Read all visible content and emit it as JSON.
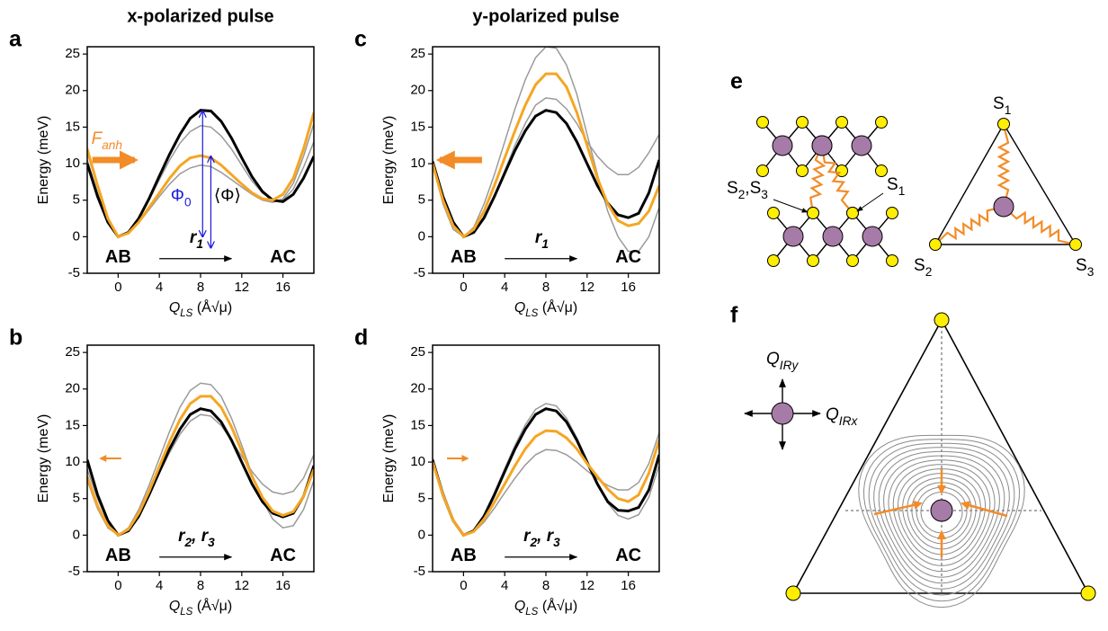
{
  "chart_data": [
    {
      "type": "line",
      "panel": "a",
      "title": "x-polarized pulse",
      "xlabel": [
        "Q",
        "LS",
        " (Å√μ)"
      ],
      "ylabel": "Energy (meV)",
      "xlim": [
        -3,
        19
      ],
      "ylim": [
        -5,
        26
      ],
      "xticks": [
        0,
        4,
        8,
        12,
        16
      ],
      "yticks": [
        -5,
        0,
        5,
        10,
        15,
        20,
        25
      ],
      "left_label": "AB",
      "right_label": "AC",
      "arrow_label": [
        "r",
        "1"
      ],
      "force_label": [
        "F",
        "anh"
      ],
      "barrier_label": [
        "Φ",
        "0"
      ],
      "mean_barrier_label": "⟨Φ⟩",
      "x": [
        -3,
        -2,
        -1,
        0,
        1,
        2,
        3,
        4,
        5,
        6,
        7,
        8,
        9,
        10,
        11,
        12,
        13,
        14,
        15,
        16,
        17,
        18,
        19
      ],
      "series": [
        {
          "color": "#9a9a9a",
          "values": [
            10.5,
            6,
            2.2,
            0,
            0.6,
            2.4,
            5,
            7.8,
            10.5,
            12.8,
            14.4,
            15.2,
            15,
            13.8,
            12,
            9.8,
            7.6,
            6,
            5,
            5,
            6.5,
            9.5,
            13
          ]
        },
        {
          "color": "#9a9a9a",
          "values": [
            11.5,
            6.8,
            2.4,
            0,
            0.5,
            1.9,
            3.7,
            5.5,
            7.2,
            8.6,
            9.4,
            9.8,
            9.6,
            8.8,
            7.8,
            6.8,
            5.8,
            5,
            4.7,
            5.2,
            7.3,
            11,
            15.5
          ]
        },
        {
          "color": "#000000",
          "values": [
            10,
            5.5,
            2,
            0,
            0.6,
            2.5,
            5.2,
            8.3,
            11.3,
            14,
            16.2,
            17.3,
            17.2,
            15.8,
            13.5,
            10.8,
            8.2,
            6.2,
            5,
            4.8,
            5.8,
            8,
            11
          ]
        },
        {
          "color": "#f5a623",
          "values": [
            12,
            7,
            2.5,
            0,
            0.5,
            2,
            4,
            6,
            8,
            9.7,
            10.8,
            11.1,
            10.8,
            9.8,
            8.5,
            7.2,
            6,
            5.2,
            5,
            5.8,
            8,
            12,
            17
          ]
        }
      ]
    },
    {
      "type": "line",
      "panel": "b",
      "xlabel": [
        "Q",
        "LS",
        " (Å√μ)"
      ],
      "ylabel": "Energy (meV)",
      "xlim": [
        -3,
        19
      ],
      "ylim": [
        -5,
        26
      ],
      "xticks": [
        0,
        4,
        8,
        12,
        16
      ],
      "yticks": [
        -5,
        0,
        5,
        10,
        15,
        20,
        25
      ],
      "left_label": "AB",
      "right_label": "AC",
      "arrow_label": [
        "r",
        "2",
        ", r",
        "3"
      ],
      "x": [
        -3,
        -2,
        -1,
        0,
        1,
        2,
        3,
        4,
        5,
        6,
        7,
        8,
        9,
        10,
        11,
        12,
        13,
        14,
        15,
        16,
        17,
        18,
        19
      ],
      "series": [
        {
          "color": "#9a9a9a",
          "values": [
            7.5,
            3.6,
            1,
            0,
            1,
            3.5,
            6.8,
            10.5,
            14.2,
            17.5,
            19.8,
            20.8,
            20.6,
            19,
            16,
            12.3,
            8.3,
            4.8,
            2.2,
            1,
            1.3,
            3.5,
            7.5
          ]
        },
        {
          "color": "#9a9a9a",
          "values": [
            9,
            5,
            1.8,
            0,
            0.7,
            2.7,
            5.5,
            8.5,
            11.3,
            13.8,
            15.6,
            16.5,
            16.3,
            15,
            13,
            10.8,
            8.7,
            7,
            5.9,
            5.6,
            6,
            7.8,
            11
          ]
        },
        {
          "color": "#000000",
          "values": [
            10.3,
            5.5,
            2,
            0,
            0.6,
            2.6,
            5.5,
            8.7,
            11.8,
            14.5,
            16.5,
            17.3,
            17,
            15.5,
            13,
            10,
            7,
            4.6,
            3,
            2.5,
            3,
            5.3,
            9.5
          ]
        },
        {
          "color": "#f5a623",
          "values": [
            8,
            4,
            1.3,
            0,
            0.8,
            3,
            6,
            9.4,
            12.8,
            15.8,
            18,
            19,
            19,
            17.5,
            14.8,
            11.5,
            8,
            5.2,
            3.3,
            2.7,
            3.2,
            5.3,
            9
          ]
        }
      ]
    },
    {
      "type": "line",
      "panel": "c",
      "title": "y-polarized pulse",
      "xlabel": [
        "Q",
        "LS",
        " (Å√μ)"
      ],
      "ylabel": "Energy (meV)",
      "xlim": [
        -3,
        19
      ],
      "ylim": [
        -5,
        26
      ],
      "xticks": [
        0,
        4,
        8,
        12,
        16
      ],
      "yticks": [
        -5,
        0,
        5,
        10,
        15,
        20,
        25
      ],
      "left_label": "AB",
      "right_label": "AC",
      "arrow_label": [
        "r",
        "1"
      ],
      "x": [
        -3,
        -2,
        -1,
        0,
        1,
        2,
        3,
        4,
        5,
        6,
        7,
        8,
        9,
        10,
        11,
        12,
        13,
        14,
        15,
        16,
        17,
        18,
        19
      ],
      "series": [
        {
          "color": "#9a9a9a",
          "values": [
            10,
            4.5,
            1,
            0,
            1.3,
            4.5,
            8.5,
            13,
            17.5,
            21.5,
            24.5,
            26,
            25.8,
            23.5,
            19.5,
            14,
            8.5,
            3.5,
            0,
            -2,
            -2,
            0,
            4
          ]
        },
        {
          "color": "#9a9a9a",
          "values": [
            10,
            5.5,
            2,
            0,
            0.6,
            2.6,
            5.5,
            9,
            12.5,
            15.5,
            18,
            19,
            18.8,
            17.5,
            15.5,
            13,
            11,
            9.5,
            8.5,
            8.5,
            9.5,
            11.5,
            14
          ]
        },
        {
          "color": "#000000",
          "values": [
            10.3,
            5.5,
            2,
            0,
            0.6,
            2.6,
            5.5,
            8.7,
            11.8,
            14.5,
            16.5,
            17.3,
            17,
            15.5,
            13,
            10,
            7,
            4.6,
            3,
            2.6,
            3.2,
            6,
            10.5
          ]
        },
        {
          "color": "#f5a623",
          "values": [
            10,
            5,
            1.5,
            0,
            1,
            3.5,
            7,
            10.8,
            14.5,
            18,
            20.8,
            22.3,
            22.3,
            20.5,
            17,
            12.5,
            8,
            4.5,
            2.2,
            1.5,
            1.8,
            3.5,
            7
          ]
        }
      ]
    },
    {
      "type": "line",
      "panel": "d",
      "xlabel": [
        "Q",
        "LS",
        " (Å√μ)"
      ],
      "ylabel": "Energy (meV)",
      "xlim": [
        -3,
        19
      ],
      "ylim": [
        -5,
        26
      ],
      "xticks": [
        0,
        4,
        8,
        12,
        16
      ],
      "yticks": [
        -5,
        0,
        5,
        10,
        15,
        20,
        25
      ],
      "left_label": "AB",
      "right_label": "AC",
      "arrow_label": [
        "r",
        "2",
        ", r",
        "3"
      ],
      "x": [
        -3,
        -2,
        -1,
        0,
        1,
        2,
        3,
        4,
        5,
        6,
        7,
        8,
        9,
        10,
        11,
        12,
        13,
        14,
        15,
        16,
        17,
        18,
        19
      ],
      "series": [
        {
          "color": "#9a9a9a",
          "values": [
            10.3,
            5.5,
            2,
            0,
            0.7,
            2.8,
            5.8,
            9.1,
            12.3,
            15.1,
            17.2,
            18,
            17.7,
            16,
            13.3,
            10.2,
            7,
            4.4,
            2.7,
            2.2,
            2.8,
            5.2,
            9.6
          ]
        },
        {
          "color": "#9a9a9a",
          "values": [
            10.5,
            6,
            2.2,
            0,
            0.4,
            1.8,
            3.7,
            5.8,
            7.8,
            9.6,
            11,
            11.7,
            11.6,
            11,
            10,
            8.8,
            7.7,
            6.8,
            6.2,
            6.2,
            7.2,
            9.8,
            14
          ]
        },
        {
          "color": "#000000",
          "values": [
            10.3,
            5.5,
            2,
            0,
            0.6,
            2.6,
            5.5,
            8.7,
            11.8,
            14.5,
            16.5,
            17.3,
            17,
            15.5,
            13,
            10,
            7,
            4.6,
            3.4,
            3.3,
            3.8,
            6.2,
            11
          ]
        },
        {
          "color": "#f5a623",
          "values": [
            10,
            5.5,
            2,
            0,
            0.5,
            2.2,
            4.5,
            7,
            9.5,
            11.8,
            13.5,
            14.3,
            14.2,
            13.3,
            11.8,
            9.8,
            8,
            6.3,
            5,
            4.6,
            5.5,
            8.5,
            13
          ]
        }
      ]
    }
  ],
  "diagrams": {
    "e": {
      "panel": "e",
      "lattice_s23": [
        "S",
        "2",
        ",S",
        "3"
      ],
      "lattice_s1": [
        "S",
        "1"
      ],
      "triangle_s1": [
        "S",
        "1"
      ],
      "triangle_s2": [
        "S",
        "2"
      ],
      "triangle_s3": [
        "S",
        "3"
      ]
    },
    "f": {
      "panel": "f",
      "qy": [
        "Q",
        "IRy"
      ],
      "qx": [
        "Q",
        "IRx"
      ]
    }
  }
}
